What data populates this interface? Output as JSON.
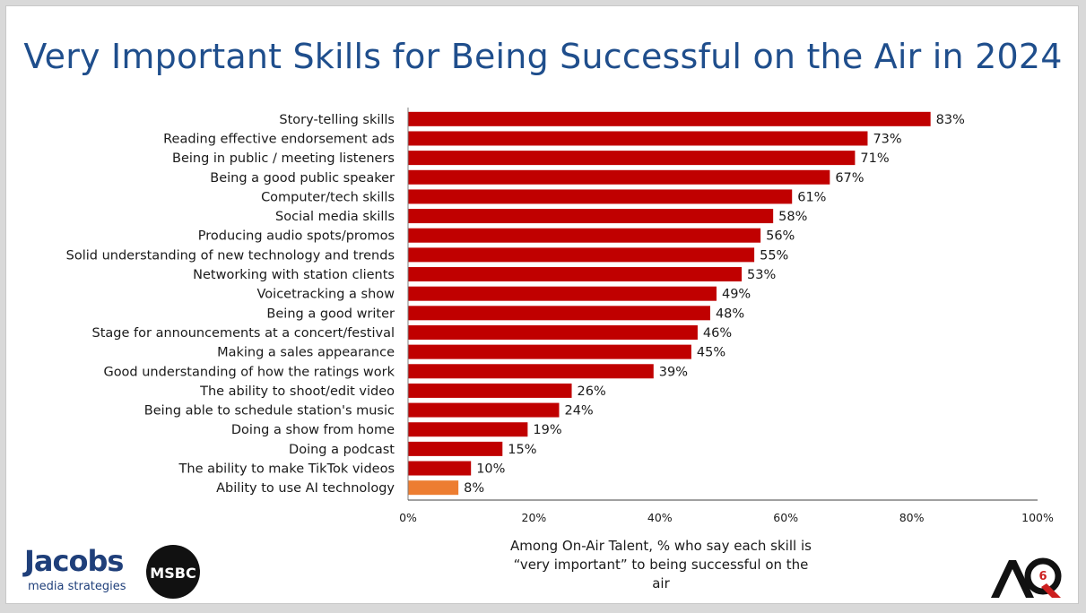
{
  "title": "Very Important Skills for Being Successful on the Air in 2024",
  "caption": {
    "line1": "Among On-Air Talent, % who say each skill is",
    "line2": "“very important” to being successful on the air"
  },
  "logos": {
    "jacobs_name": "Jacobs",
    "jacobs_tagline": "media strategies",
    "msbc_text": "MSBC",
    "aq_text": "AQ",
    "aq_number": "6"
  },
  "colors": {
    "bar": "#c00000",
    "highlight_bar": "#ed7d31",
    "title": "#1f4e8c"
  },
  "chart_data": {
    "type": "bar",
    "orientation": "horizontal",
    "title": "Very Important Skills for Being Successful on the Air in 2024",
    "xlabel": "",
    "ylabel": "",
    "xlim": [
      0,
      100
    ],
    "x_ticks": [
      "0%",
      "20%",
      "40%",
      "60%",
      "80%",
      "100%"
    ],
    "grid": false,
    "categories": [
      "Story-telling skills",
      "Reading effective endorsement ads",
      "Being in public / meeting listeners",
      "Being a good public speaker",
      "Computer/tech skills",
      "Social media skills",
      "Producing audio spots/promos",
      "Solid understanding of new technology and trends",
      "Networking with station clients",
      "Voicetracking a show",
      "Being a good writer",
      "Stage for announcements at a concert/festival",
      "Making a sales appearance",
      "Good understanding of how the ratings work",
      "The ability to shoot/edit video",
      "Being able to schedule station's music",
      "Doing a show from home",
      "Doing a podcast",
      "The ability to make TikTok videos",
      "Ability to use AI technology"
    ],
    "values": [
      83,
      73,
      71,
      67,
      61,
      58,
      56,
      55,
      53,
      49,
      48,
      46,
      45,
      39,
      26,
      24,
      19,
      15,
      10,
      8
    ],
    "data_labels": [
      "83%",
      "73%",
      "71%",
      "67%",
      "61%",
      "58%",
      "56%",
      "55%",
      "53%",
      "49%",
      "48%",
      "46%",
      "45%",
      "39%",
      "26%",
      "24%",
      "19%",
      "15%",
      "10%",
      "8%"
    ],
    "highlighted_category": "Ability to use AI technology"
  }
}
